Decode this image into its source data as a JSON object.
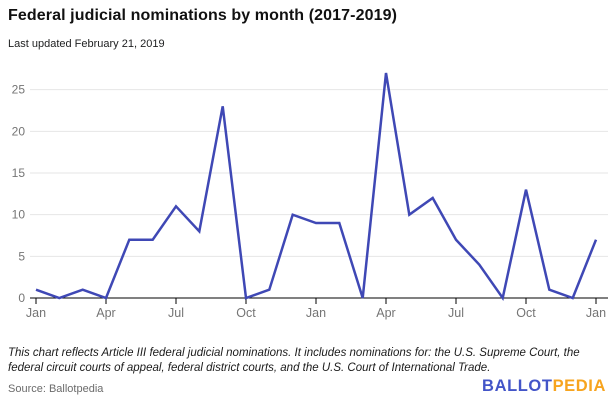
{
  "chart_data": {
    "type": "line",
    "title": "Federal judicial nominations by month (2017-2019)",
    "subtitle": "Last updated February 21, 2019",
    "x": [
      "Jan 2017",
      "Feb 2017",
      "Mar 2017",
      "Apr 2017",
      "May 2017",
      "Jun 2017",
      "Jul 2017",
      "Aug 2017",
      "Sep 2017",
      "Oct 2017",
      "Nov 2017",
      "Dec 2017",
      "Jan 2018",
      "Feb 2018",
      "Mar 2018",
      "Apr 2018",
      "May 2018",
      "Jun 2018",
      "Jul 2018",
      "Aug 2018",
      "Sep 2018",
      "Oct 2018",
      "Nov 2018",
      "Dec 2018",
      "Jan 2019"
    ],
    "values": [
      1,
      0,
      1,
      0,
      7,
      7,
      11,
      8,
      23,
      0,
      1,
      10,
      9,
      9,
      0,
      27,
      10,
      12,
      7,
      4,
      0,
      13,
      1,
      0,
      7
    ],
    "xlabel": "",
    "ylabel": "",
    "ylim": [
      0,
      27
    ],
    "yticks": [
      0,
      5,
      10,
      15,
      20,
      25
    ],
    "xtick_indices": [
      0,
      3,
      6,
      9,
      12,
      15,
      18,
      21,
      24
    ],
    "xtick_labels": [
      "Jan",
      "Apr",
      "Jul",
      "Oct",
      "Jan",
      "Apr",
      "Jul",
      "Oct",
      "Jan"
    ],
    "grid": true,
    "legend": "none"
  },
  "footer": {
    "note": "This chart reflects Article III federal judicial nominations. It includes nominations for: the U.S. Supreme Court, the federal circuit courts of appeal, federal district courts, and the U.S. Court of International Trade.",
    "source": "Source: Ballotpedia",
    "logo_part1": "BALLOT",
    "logo_part2": "PEDIA"
  },
  "colors": {
    "line": "#3f48b5",
    "grid": "#e6e6e6",
    "axis": "#000000",
    "tick_label": "#757575",
    "logo_blue": "#4355c8",
    "logo_gold": "#f7a41f"
  }
}
